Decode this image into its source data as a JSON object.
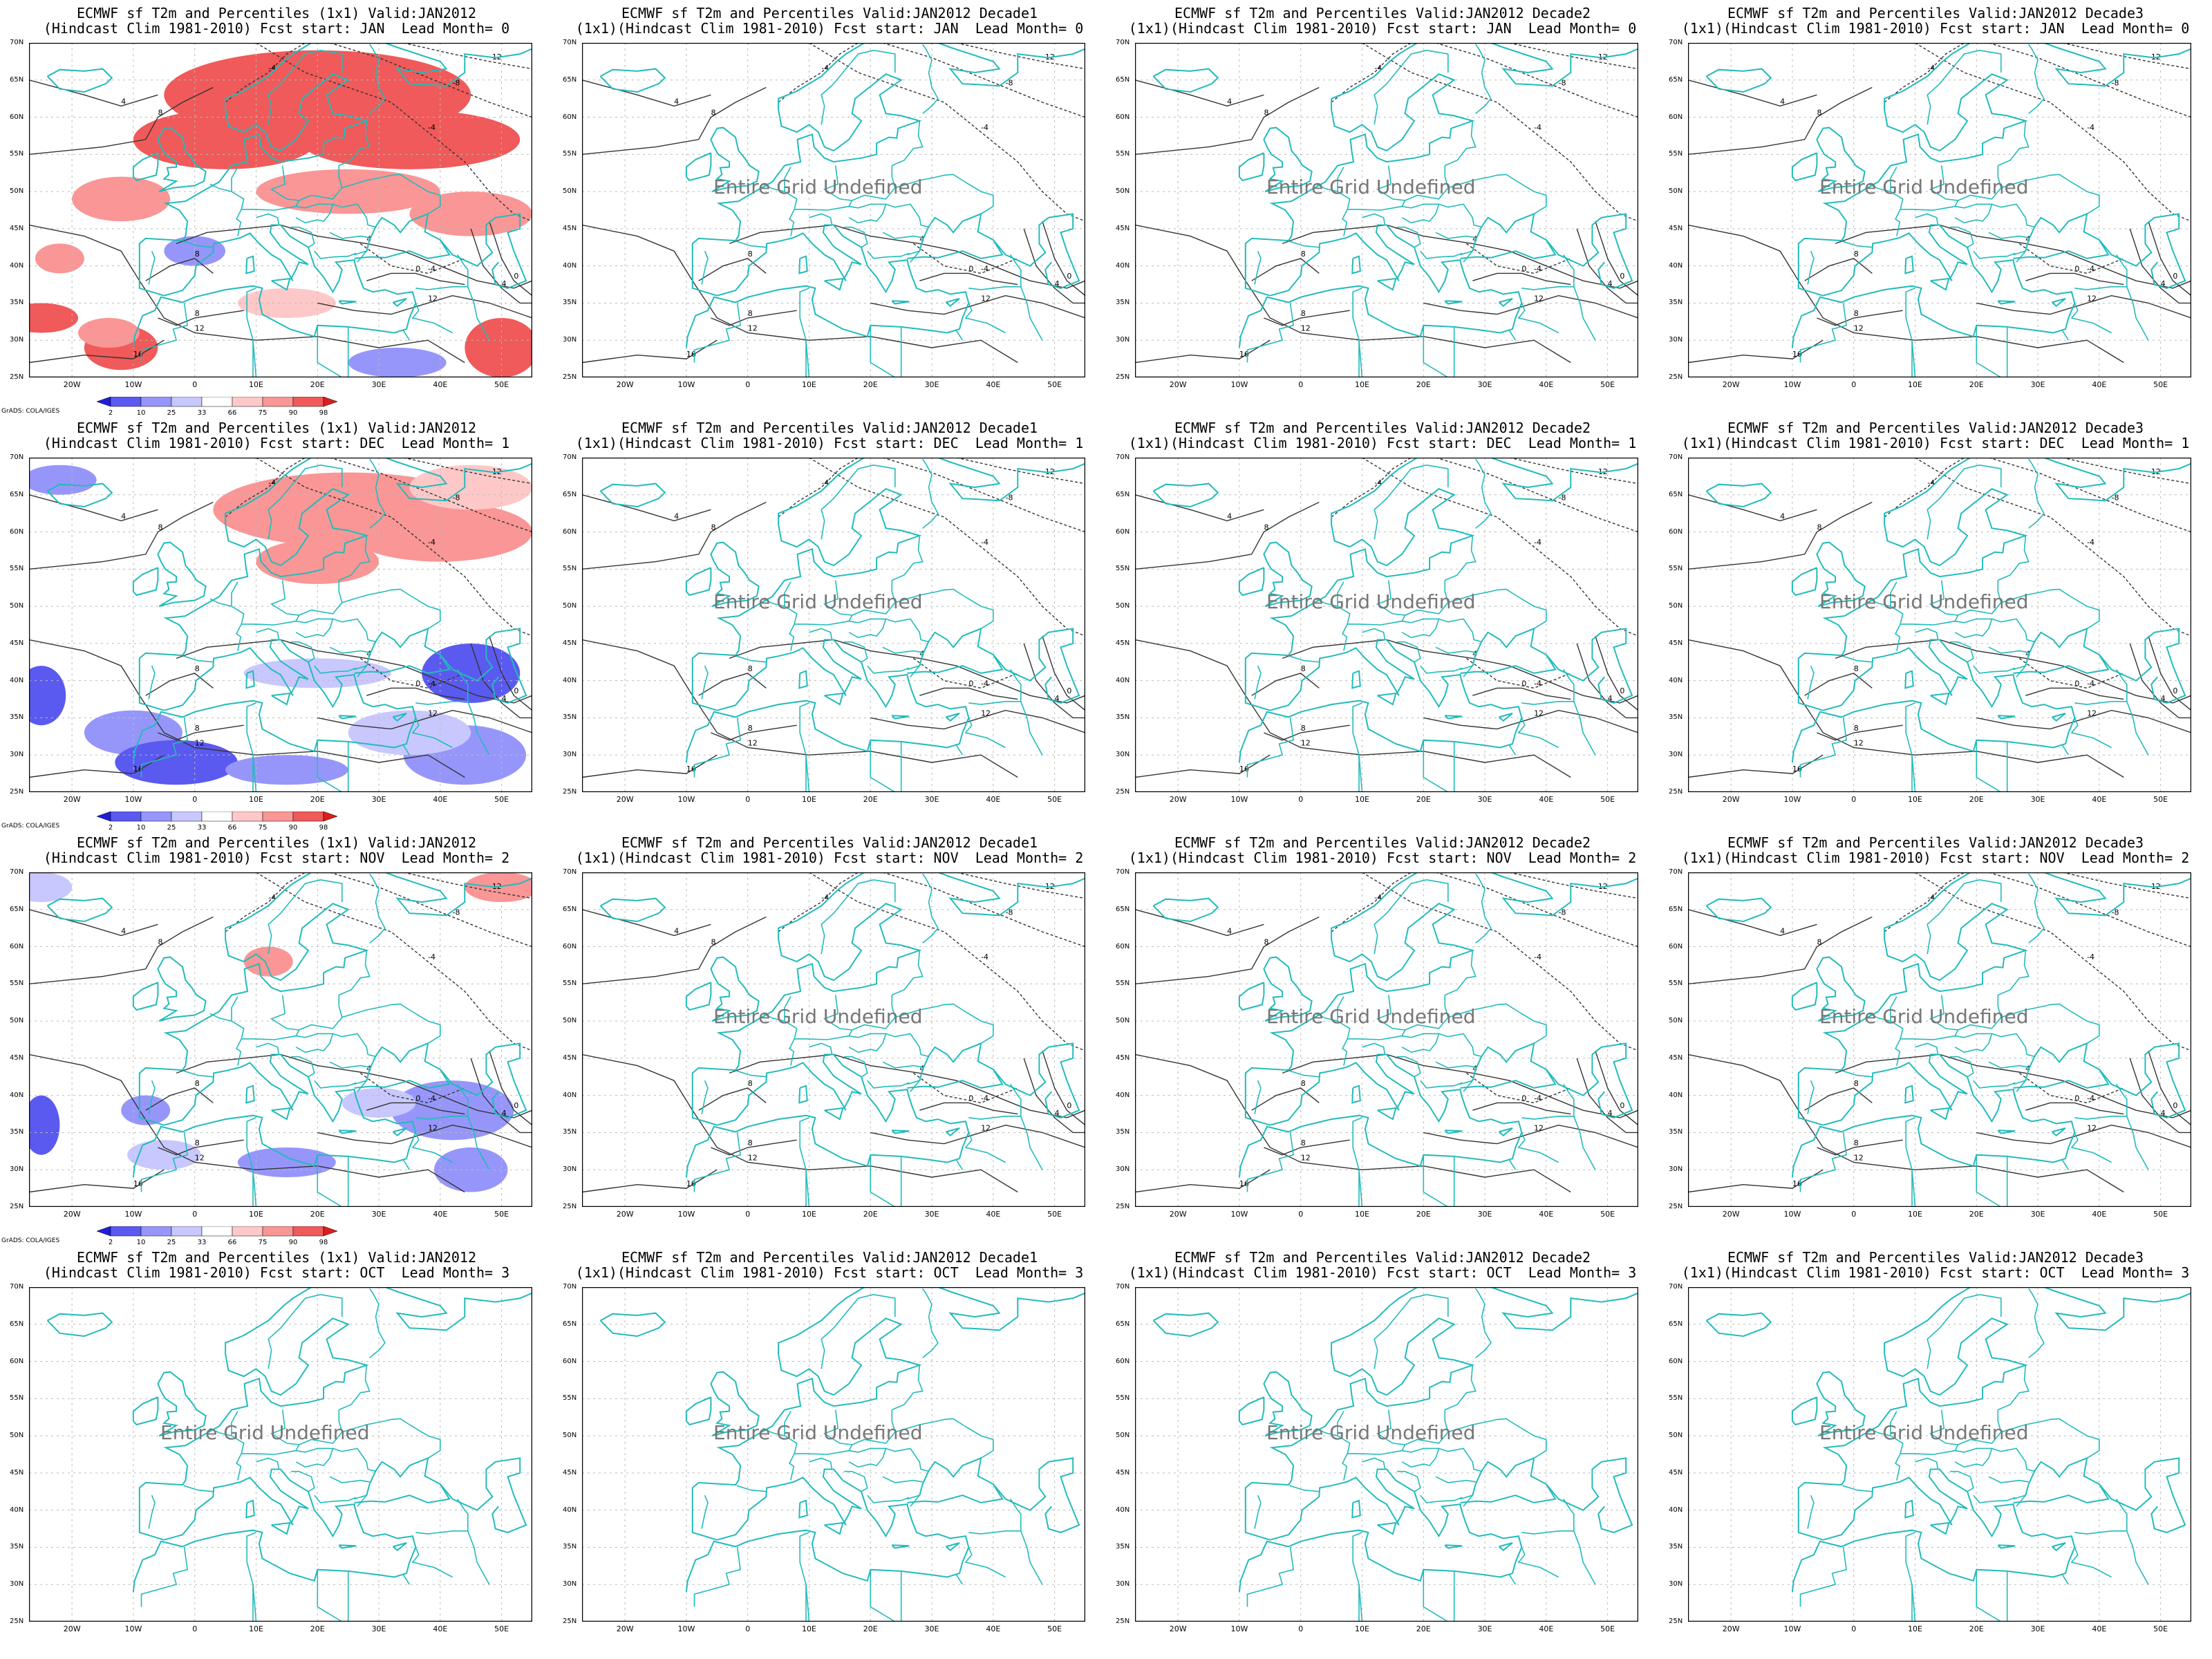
{
  "common": {
    "undefined_text": "Entire Grid Undefined",
    "credit": "GrADS: COLA/IGES",
    "lat_labels": [
      "25N",
      "30N",
      "35N",
      "40N",
      "45N",
      "50N",
      "55N",
      "60N",
      "65N",
      "70N"
    ],
    "lon_labels": [
      "20W",
      "10W",
      "0",
      "10E",
      "20E",
      "30E",
      "40E",
      "50E"
    ],
    "colorbar_labels": [
      "2",
      "10",
      "25",
      "33",
      "66",
      "75",
      "90",
      "98"
    ],
    "colorbar_colors": [
      "#1e1edc",
      "#5a5af0",
      "#9696fa",
      "#c8c8ff",
      "#ffffff",
      "#ffc8c8",
      "#fa9696",
      "#f05a5a",
      "#dc1e1e"
    ],
    "colors": {
      "coast": "#22bbbb",
      "contour": "#333333",
      "grid": "#bbbbbb"
    },
    "contour_labels": [
      "-12",
      "-8",
      "-4",
      "4",
      "8",
      "12",
      "16"
    ]
  },
  "rows": [
    {
      "month": "JAN",
      "lead": "0",
      "titles": [
        {
          "line1": "ECMWF sf T2m and Percentiles (1x1) Valid:JAN2012",
          "line2": "(Hindcast Clim 1981-2010) Fcst start: JAN  Lead Month= 0"
        },
        {
          "line1": "ECMWF sf T2m and Percentiles Valid:JAN2012 Decade1",
          "line2": "(1x1)(Hindcast Clim 1981-2010) Fcst start: JAN  Lead Month= 0"
        },
        {
          "line1": "ECMWF sf T2m and Percentiles Valid:JAN2012 Decade2",
          "line2": "(1x1)(Hindcast Clim 1981-2010) Fcst start: JAN  Lead Month= 0"
        },
        {
          "line1": "ECMWF sf T2m and Percentiles Valid:JAN2012 Decade3",
          "line2": "(1x1)(Hindcast Clim 1981-2010) Fcst start: JAN  Lead Month= 0"
        }
      ]
    },
    {
      "month": "DEC",
      "lead": "1",
      "titles": [
        {
          "line1": "ECMWF sf T2m and Percentiles (1x1) Valid:JAN2012",
          "line2": "(Hindcast Clim 1981-2010) Fcst start: DEC  Lead Month= 1"
        },
        {
          "line1": "ECMWF sf T2m and Percentiles Valid:JAN2012 Decade1",
          "line2": "(1x1)(Hindcast Clim 1981-2010) Fcst start: DEC  Lead Month= 1"
        },
        {
          "line1": "ECMWF sf T2m and Percentiles Valid:JAN2012 Decade2",
          "line2": "(1x1)(Hindcast Clim 1981-2010) Fcst start: DEC  Lead Month= 1"
        },
        {
          "line1": "ECMWF sf T2m and Percentiles Valid:JAN2012 Decade3",
          "line2": "(1x1)(Hindcast Clim 1981-2010) Fcst start: DEC  Lead Month= 1"
        }
      ]
    },
    {
      "month": "NOV",
      "lead": "2",
      "titles": [
        {
          "line1": "ECMWF sf T2m and Percentiles (1x1) Valid:JAN2012",
          "line2": "(Hindcast Clim 1981-2010) Fcst start: NOV  Lead Month= 2"
        },
        {
          "line1": "ECMWF sf T2m and Percentiles Valid:JAN2012 Decade1",
          "line2": "(1x1)(Hindcast Clim 1981-2010) Fcst start: NOV  Lead Month= 2"
        },
        {
          "line1": "ECMWF sf T2m and Percentiles Valid:JAN2012 Decade2",
          "line2": "(1x1)(Hindcast Clim 1981-2010) Fcst start: NOV  Lead Month= 2"
        },
        {
          "line1": "ECMWF sf T2m and Percentiles Valid:JAN2012 Decade3",
          "line2": "(1x1)(Hindcast Clim 1981-2010) Fcst start: NOV  Lead Month= 2"
        }
      ]
    },
    {
      "month": "OCT",
      "lead": "3",
      "titles": [
        {
          "line1": "ECMWF sf T2m and Percentiles (1x1) Valid:JAN2012",
          "line2": "(Hindcast Clim 1981-2010) Fcst start: OCT  Lead Month= 3"
        },
        {
          "line1": "ECMWF sf T2m and Percentiles Valid:JAN2012 Decade1",
          "line2": "(1x1)(Hindcast Clim 1981-2010) Fcst start: OCT  Lead Month= 3"
        },
        {
          "line1": "ECMWF sf T2m and Percentiles Valid:JAN2012 Decade2",
          "line2": "(1x1)(Hindcast Clim 1981-2010) Fcst start: OCT  Lead Month= 3"
        },
        {
          "line1": "ECMWF sf T2m and Percentiles Valid:JAN2012 Decade3",
          "line2": "(1x1)(Hindcast Clim 1981-2010) Fcst start: OCT  Lead Month= 3"
        }
      ]
    }
  ]
}
